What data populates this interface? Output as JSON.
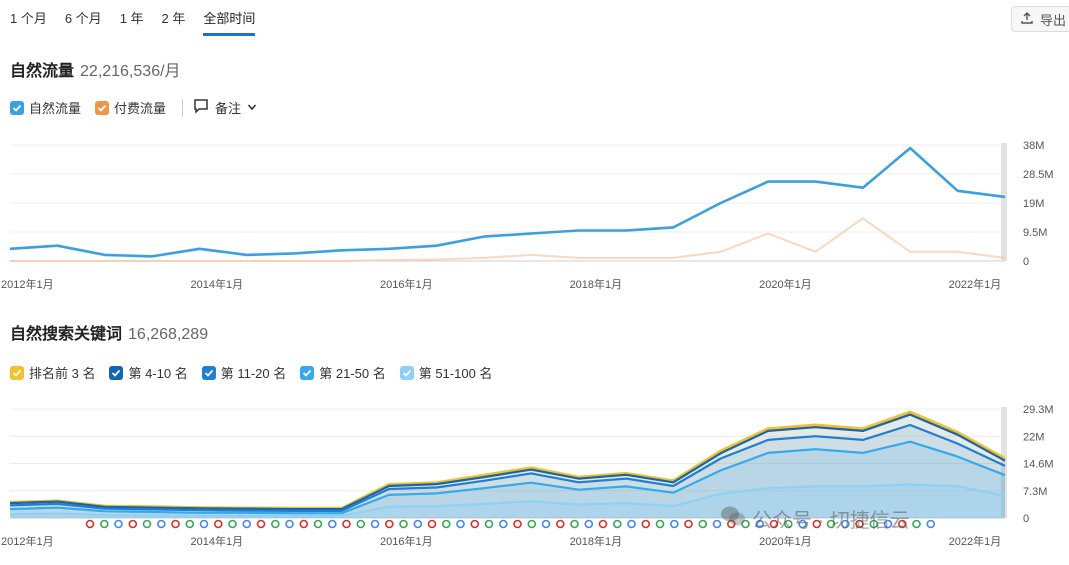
{
  "tabs": [
    "1 个月",
    "6 个月",
    "1 年",
    "2 年",
    "全部时间"
  ],
  "active_tab": 4,
  "export_label": "导出",
  "organic": {
    "title": "自然流量",
    "value": "22,216,536/月",
    "legend": [
      {
        "label": "自然流量",
        "color": "#3aa0e0"
      },
      {
        "label": "付费流量",
        "color": "#f0944a"
      }
    ],
    "notes_label": "备注"
  },
  "keywords": {
    "title": "自然搜索关键词",
    "value": "16,268,289",
    "legend": [
      {
        "label": "排名前 3 名",
        "color": "#f2c12e"
      },
      {
        "label": "第 4-10 名",
        "color": "#1565b0"
      },
      {
        "label": "第 11-20 名",
        "color": "#1f7fd0"
      },
      {
        "label": "第 21-50 名",
        "color": "#36a9ec"
      },
      {
        "label": "第 51-100 名",
        "color": "#8ed0f6"
      }
    ]
  },
  "watermark": "公众号 · 切捷信云",
  "chart_data": [
    {
      "type": "line",
      "x": [
        "2012-01",
        "2012-07",
        "2013-01",
        "2013-07",
        "2014-01",
        "2014-07",
        "2015-01",
        "2015-07",
        "2016-01",
        "2016-07",
        "2017-01",
        "2017-07",
        "2018-01",
        "2018-07",
        "2019-01",
        "2019-07",
        "2020-01",
        "2020-07",
        "2021-01",
        "2021-07",
        "2022-01",
        "2022-07"
      ],
      "x_tick_labels": [
        "2012年1月",
        "2014年1月",
        "2016年1月",
        "2018年1月",
        "2020年1月",
        "2022年1月"
      ],
      "y_tick_labels": [
        "0",
        "9.5M",
        "19M",
        "28.5M",
        "38M"
      ],
      "ylim": [
        0,
        38
      ],
      "series": [
        {
          "name": "自然流量",
          "values": [
            4,
            5,
            2,
            1.5,
            4,
            2,
            2.5,
            3.5,
            4,
            5,
            8,
            9,
            10,
            10,
            11,
            19,
            26,
            26,
            24,
            37,
            23,
            21
          ]
        },
        {
          "name": "付费流量",
          "values": [
            0,
            0,
            0,
            0,
            0,
            0,
            0,
            0,
            0.3,
            0.5,
            1,
            2,
            1,
            1,
            1,
            3,
            9,
            3,
            14,
            3,
            3,
            1
          ]
        }
      ]
    },
    {
      "type": "area",
      "x": [
        "2012-01",
        "2012-07",
        "2013-01",
        "2013-07",
        "2014-01",
        "2014-07",
        "2015-01",
        "2015-07",
        "2016-01",
        "2016-07",
        "2017-01",
        "2017-07",
        "2018-01",
        "2018-07",
        "2019-01",
        "2019-07",
        "2020-01",
        "2020-07",
        "2021-01",
        "2021-07",
        "2022-01",
        "2022-07"
      ],
      "x_tick_labels": [
        "2012年1月",
        "2014年1月",
        "2016年1月",
        "2018年1月",
        "2020年1月",
        "2022年1月"
      ],
      "y_tick_labels": [
        "0",
        "7.3M",
        "14.6M",
        "22M",
        "29.3M"
      ],
      "ylim": [
        0,
        29.3
      ],
      "series": [
        {
          "name": "排名前 3 名",
          "values": [
            4.2,
            4.6,
            3.2,
            3.0,
            2.8,
            2.7,
            2.6,
            2.6,
            9,
            9.5,
            11.5,
            13.5,
            11,
            12,
            10,
            18,
            24,
            25,
            24,
            28.5,
            23,
            16
          ]
        },
        {
          "name": "第 4-10 名",
          "values": [
            4.0,
            4.4,
            3.0,
            2.8,
            2.6,
            2.5,
            2.4,
            2.4,
            8.6,
            9.1,
            11.0,
            13.0,
            10.6,
            11.6,
            9.6,
            17.4,
            23.4,
            24.4,
            23.4,
            27.8,
            22.4,
            15.4
          ]
        },
        {
          "name": "第 11-20 名",
          "values": [
            3.4,
            3.8,
            2.5,
            2.3,
            2.1,
            2.0,
            1.9,
            1.9,
            7.8,
            8.2,
            10.0,
            12.0,
            9.6,
            10.6,
            8.6,
            16.0,
            21.0,
            22.0,
            21.0,
            25.0,
            20.0,
            14.0
          ]
        },
        {
          "name": "第 21-50 名",
          "values": [
            2.4,
            2.8,
            1.8,
            1.6,
            1.4,
            1.4,
            1.3,
            1.3,
            6.2,
            6.6,
            8.0,
            9.5,
            7.6,
            8.5,
            6.8,
            12.8,
            17.5,
            18.5,
            17.5,
            20.5,
            16.5,
            11.5
          ]
        },
        {
          "name": "第 51-100 名",
          "values": [
            1.0,
            1.2,
            0.8,
            0.7,
            0.6,
            0.6,
            0.6,
            0.6,
            3.0,
            3.2,
            3.8,
            4.5,
            3.6,
            4.0,
            3.2,
            6.5,
            8.0,
            8.5,
            8.5,
            9.0,
            8.5,
            6.0
          ]
        }
      ]
    }
  ]
}
